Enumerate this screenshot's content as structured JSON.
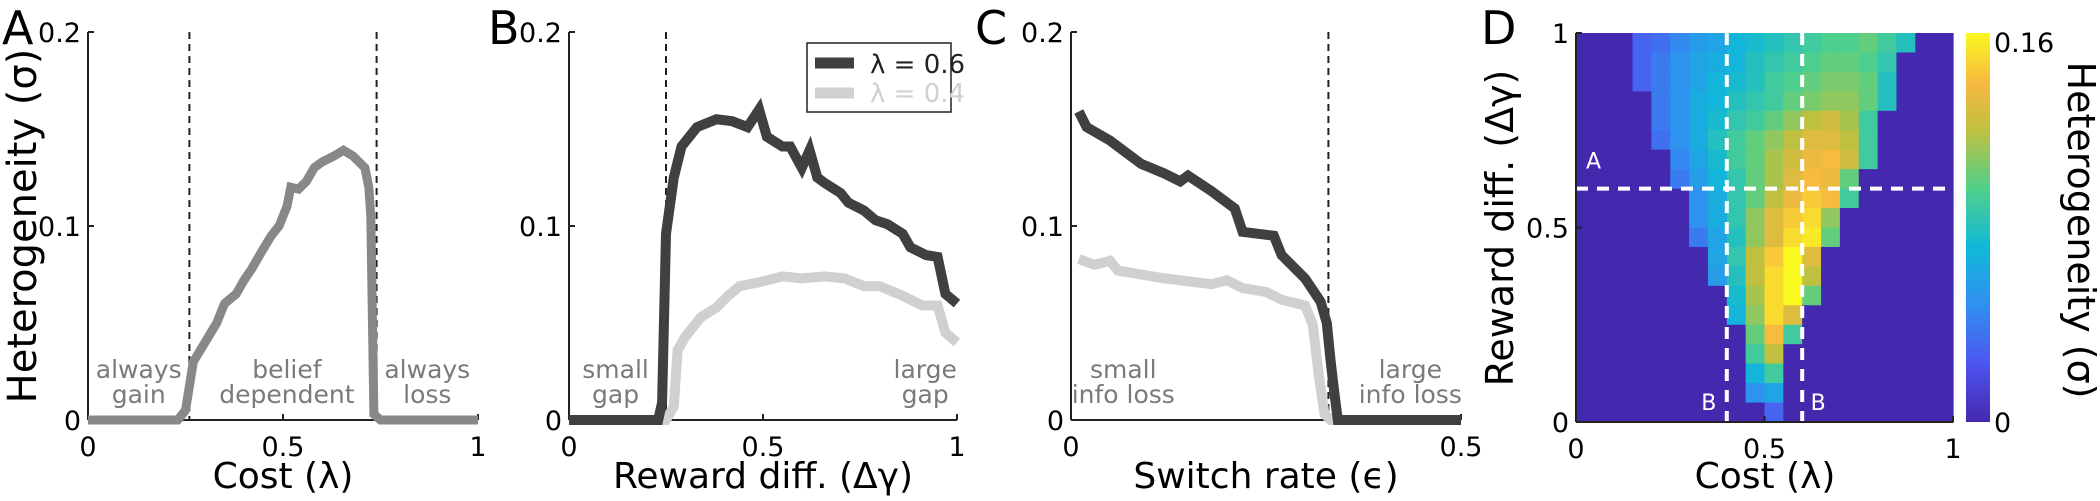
{
  "chart_data": [
    {
      "panel": "A",
      "type": "line",
      "xlabel": "Cost (λ)",
      "ylabel": "Heterogeneity (σ)",
      "xlim": [
        0,
        1
      ],
      "ylim": [
        0,
        0.2
      ],
      "xticks": [
        "0",
        "0.5",
        "1"
      ],
      "yticks": [
        "0",
        "0.1",
        "0.2"
      ],
      "vlines": [
        0.26,
        0.74
      ],
      "annotations": [
        {
          "lines": [
            "always",
            "gain"
          ],
          "x": 0.13
        },
        {
          "lines": [
            "belief",
            "dependent"
          ],
          "x": 0.51
        },
        {
          "lines": [
            "always",
            "loss"
          ],
          "x": 0.87
        }
      ],
      "series": [
        {
          "color": "#888888",
          "x": [
            0,
            0.23,
            0.25,
            0.27,
            0.3,
            0.33,
            0.35,
            0.38,
            0.4,
            0.42,
            0.44,
            0.47,
            0.49,
            0.51,
            0.52,
            0.54,
            0.56,
            0.58,
            0.6,
            0.63,
            0.655,
            0.68,
            0.71,
            0.72,
            0.725,
            0.733,
            0.75,
            1
          ],
          "y": [
            0,
            0,
            0.005,
            0.03,
            0.04,
            0.05,
            0.06,
            0.065,
            0.072,
            0.078,
            0.085,
            0.095,
            0.1,
            0.11,
            0.12,
            0.119,
            0.123,
            0.13,
            0.133,
            0.136,
            0.139,
            0.136,
            0.13,
            0.12,
            0.105,
            0.003,
            0,
            0
          ]
        }
      ]
    },
    {
      "panel": "B",
      "type": "line",
      "xlabel": "Reward diff. (Δγ)",
      "xlim": [
        0,
        1
      ],
      "ylim": [
        0,
        0.2
      ],
      "xticks": [
        "0",
        "0.5",
        "1"
      ],
      "yticks": [
        "0",
        "0.1",
        "0.2"
      ],
      "vlines": [
        0.25
      ],
      "legend_position": "top-right",
      "annotations": [
        {
          "lines": [
            "small",
            "gap"
          ],
          "x": 0.12
        },
        {
          "lines": [
            "large",
            "gap"
          ],
          "x": 0.918
        }
      ],
      "series": [
        {
          "name": "λ = 0.6",
          "color": "#404040",
          "x": [
            0,
            0.23,
            0.24,
            0.25,
            0.27,
            0.29,
            0.33,
            0.38,
            0.42,
            0.46,
            0.49,
            0.51,
            0.55,
            0.57,
            0.6,
            0.62,
            0.64,
            0.66,
            0.7,
            0.72,
            0.76,
            0.79,
            0.82,
            0.86,
            0.88,
            0.92,
            0.95,
            0.97,
            1.0
          ],
          "y": [
            0,
            0,
            0.009,
            0.096,
            0.125,
            0.141,
            0.151,
            0.155,
            0.154,
            0.151,
            0.16,
            0.146,
            0.141,
            0.141,
            0.13,
            0.139,
            0.125,
            0.122,
            0.117,
            0.112,
            0.108,
            0.103,
            0.101,
            0.096,
            0.089,
            0.085,
            0.084,
            0.065,
            0.06
          ]
        },
        {
          "name": "λ = 0.4",
          "color": "#d0d0d0",
          "x": [
            0,
            0.25,
            0.27,
            0.28,
            0.3,
            0.34,
            0.38,
            0.41,
            0.44,
            0.49,
            0.55,
            0.6,
            0.66,
            0.71,
            0.76,
            0.8,
            0.86,
            0.91,
            0.95,
            0.97,
            1.0
          ],
          "y": [
            0,
            0,
            0.007,
            0.036,
            0.043,
            0.053,
            0.058,
            0.064,
            0.069,
            0.071,
            0.074,
            0.073,
            0.074,
            0.073,
            0.069,
            0.069,
            0.064,
            0.059,
            0.059,
            0.045,
            0.04
          ]
        }
      ]
    },
    {
      "panel": "C",
      "type": "line",
      "xlabel": "Switch rate (ϵ)",
      "xlim": [
        0,
        0.5
      ],
      "ylim": [
        0,
        0.2
      ],
      "xticks": [
        "0",
        "0.5"
      ],
      "yticks": [
        "0",
        "0.1",
        "0.2"
      ],
      "vlines": [
        0.33
      ],
      "annotations": [
        {
          "lines": [
            "small",
            "info loss"
          ],
          "x": 0.067
        },
        {
          "lines": [
            "large",
            "info loss"
          ],
          "x": 0.435
        }
      ],
      "series": [
        {
          "color": "#404040",
          "x": [
            0.01,
            0.02,
            0.05,
            0.09,
            0.12,
            0.14,
            0.15,
            0.18,
            0.21,
            0.22,
            0.24,
            0.26,
            0.27,
            0.3,
            0.32,
            0.328,
            0.333,
            0.338,
            0.342,
            0.5
          ],
          "y": [
            0.159,
            0.151,
            0.144,
            0.132,
            0.127,
            0.123,
            0.126,
            0.118,
            0.109,
            0.097,
            0.096,
            0.095,
            0.085,
            0.073,
            0.061,
            0.05,
            0.03,
            0.013,
            0,
            0
          ]
        },
        {
          "color": "#d0d0d0",
          "x": [
            0.01,
            0.03,
            0.05,
            0.06,
            0.12,
            0.14,
            0.18,
            0.2,
            0.22,
            0.25,
            0.27,
            0.3,
            0.31,
            0.318,
            0.325,
            0.333,
            0.5
          ],
          "y": [
            0.083,
            0.08,
            0.082,
            0.077,
            0.073,
            0.072,
            0.07,
            0.072,
            0.068,
            0.066,
            0.062,
            0.059,
            0.049,
            0.022,
            0.003,
            0,
            0
          ]
        }
      ]
    },
    {
      "panel": "D",
      "type": "heatmap",
      "xlabel": "Cost (λ)",
      "ylabel": "Reward diff. (Δγ)",
      "colorbar_label": "Heterogeneity (σ)",
      "colormap": "parula",
      "clim": [
        0,
        0.16
      ],
      "colorbar_ticks": [
        "0",
        "0.16"
      ],
      "xlim": [
        0,
        1
      ],
      "ylim": [
        0,
        1
      ],
      "xticks": [
        "0",
        "0.5",
        "1"
      ],
      "yticks": [
        "0",
        "0.5",
        "1"
      ],
      "guides": [
        {
          "orientation": "horizontal",
          "value": 0.6,
          "label": "A"
        },
        {
          "orientation": "vertical",
          "value": 0.4,
          "label": "B"
        },
        {
          "orientation": "vertical",
          "value": 0.6,
          "label": "B"
        }
      ],
      "rows_top_to_bottom": [
        [
          0,
          0,
          0,
          0.03,
          0.035,
          0.045,
          0.055,
          0.06,
          0.07,
          0.075,
          0.08,
          0.085,
          0.09,
          0.095,
          0.095,
          0.1,
          0.09,
          0.08,
          0,
          0
        ],
        [
          0,
          0,
          0,
          0.03,
          0.04,
          0.05,
          0.06,
          0.065,
          0.07,
          0.08,
          0.085,
          0.09,
          0.095,
          0.1,
          0.1,
          0.095,
          0.085,
          0,
          0,
          0
        ],
        [
          0,
          0,
          0,
          0.03,
          0.04,
          0.05,
          0.06,
          0.07,
          0.075,
          0.08,
          0.09,
          0.095,
          0.1,
          0.105,
          0.105,
          0.1,
          0.08,
          0,
          0,
          0
        ],
        [
          0,
          0,
          0,
          0,
          0.04,
          0.05,
          0.065,
          0.07,
          0.08,
          0.085,
          0.09,
          0.1,
          0.105,
          0.11,
          0.11,
          0.1,
          0.08,
          0,
          0,
          0
        ],
        [
          0,
          0,
          0,
          0,
          0.04,
          0.05,
          0.065,
          0.075,
          0.085,
          0.09,
          0.1,
          0.11,
          0.12,
          0.125,
          0.115,
          0.09,
          0,
          0,
          0,
          0
        ],
        [
          0,
          0,
          0,
          0,
          0.035,
          0.05,
          0.065,
          0.08,
          0.09,
          0.1,
          0.11,
          0.12,
          0.13,
          0.13,
          0.12,
          0.09,
          0,
          0,
          0,
          0
        ],
        [
          0,
          0,
          0,
          0,
          0,
          0.045,
          0.06,
          0.075,
          0.09,
          0.1,
          0.115,
          0.125,
          0.135,
          0.14,
          0.125,
          0.09,
          0,
          0,
          0,
          0
        ],
        [
          0,
          0,
          0,
          0,
          0,
          0.04,
          0.055,
          0.07,
          0.085,
          0.1,
          0.115,
          0.13,
          0.14,
          0.135,
          0.1,
          0,
          0,
          0,
          0,
          0
        ],
        [
          0,
          0,
          0,
          0,
          0,
          0,
          0.05,
          0.065,
          0.085,
          0.1,
          0.12,
          0.135,
          0.145,
          0.14,
          0.09,
          0,
          0,
          0,
          0,
          0
        ],
        [
          0,
          0,
          0,
          0,
          0,
          0,
          0.05,
          0.065,
          0.085,
          0.11,
          0.13,
          0.145,
          0.15,
          0.11,
          0,
          0,
          0,
          0,
          0,
          0
        ],
        [
          0,
          0,
          0,
          0,
          0,
          0,
          0.04,
          0.06,
          0.08,
          0.11,
          0.13,
          0.15,
          0.155,
          0.1,
          0,
          0,
          0,
          0,
          0,
          0
        ],
        [
          0,
          0,
          0,
          0,
          0,
          0,
          0,
          0.06,
          0.085,
          0.12,
          0.145,
          0.16,
          0.13,
          0,
          0,
          0,
          0,
          0,
          0,
          0
        ],
        [
          0,
          0,
          0,
          0,
          0,
          0,
          0,
          0.055,
          0.08,
          0.12,
          0.15,
          0.16,
          0.12,
          0,
          0,
          0,
          0,
          0,
          0,
          0
        ],
        [
          0,
          0,
          0,
          0,
          0,
          0,
          0,
          0,
          0.075,
          0.115,
          0.15,
          0.16,
          0.1,
          0,
          0,
          0,
          0,
          0,
          0,
          0
        ],
        [
          0,
          0,
          0,
          0,
          0,
          0,
          0,
          0,
          0.07,
          0.11,
          0.15,
          0.13,
          0,
          0,
          0,
          0,
          0,
          0,
          0,
          0
        ],
        [
          0,
          0,
          0,
          0,
          0,
          0,
          0,
          0,
          0,
          0.1,
          0.14,
          0.09,
          0,
          0,
          0,
          0,
          0,
          0,
          0,
          0
        ],
        [
          0,
          0,
          0,
          0,
          0,
          0,
          0,
          0,
          0,
          0.09,
          0.12,
          0,
          0,
          0,
          0,
          0,
          0,
          0,
          0,
          0
        ],
        [
          0,
          0,
          0,
          0,
          0,
          0,
          0,
          0,
          0,
          0.07,
          0.09,
          0,
          0,
          0,
          0,
          0,
          0,
          0,
          0,
          0
        ],
        [
          0,
          0,
          0,
          0,
          0,
          0,
          0,
          0,
          0,
          0.05,
          0.06,
          0,
          0,
          0,
          0,
          0,
          0,
          0,
          0,
          0
        ],
        [
          0,
          0,
          0,
          0,
          0,
          0,
          0,
          0,
          0,
          0,
          0.03,
          0,
          0,
          0,
          0,
          0,
          0,
          0,
          0,
          0
        ]
      ]
    }
  ]
}
